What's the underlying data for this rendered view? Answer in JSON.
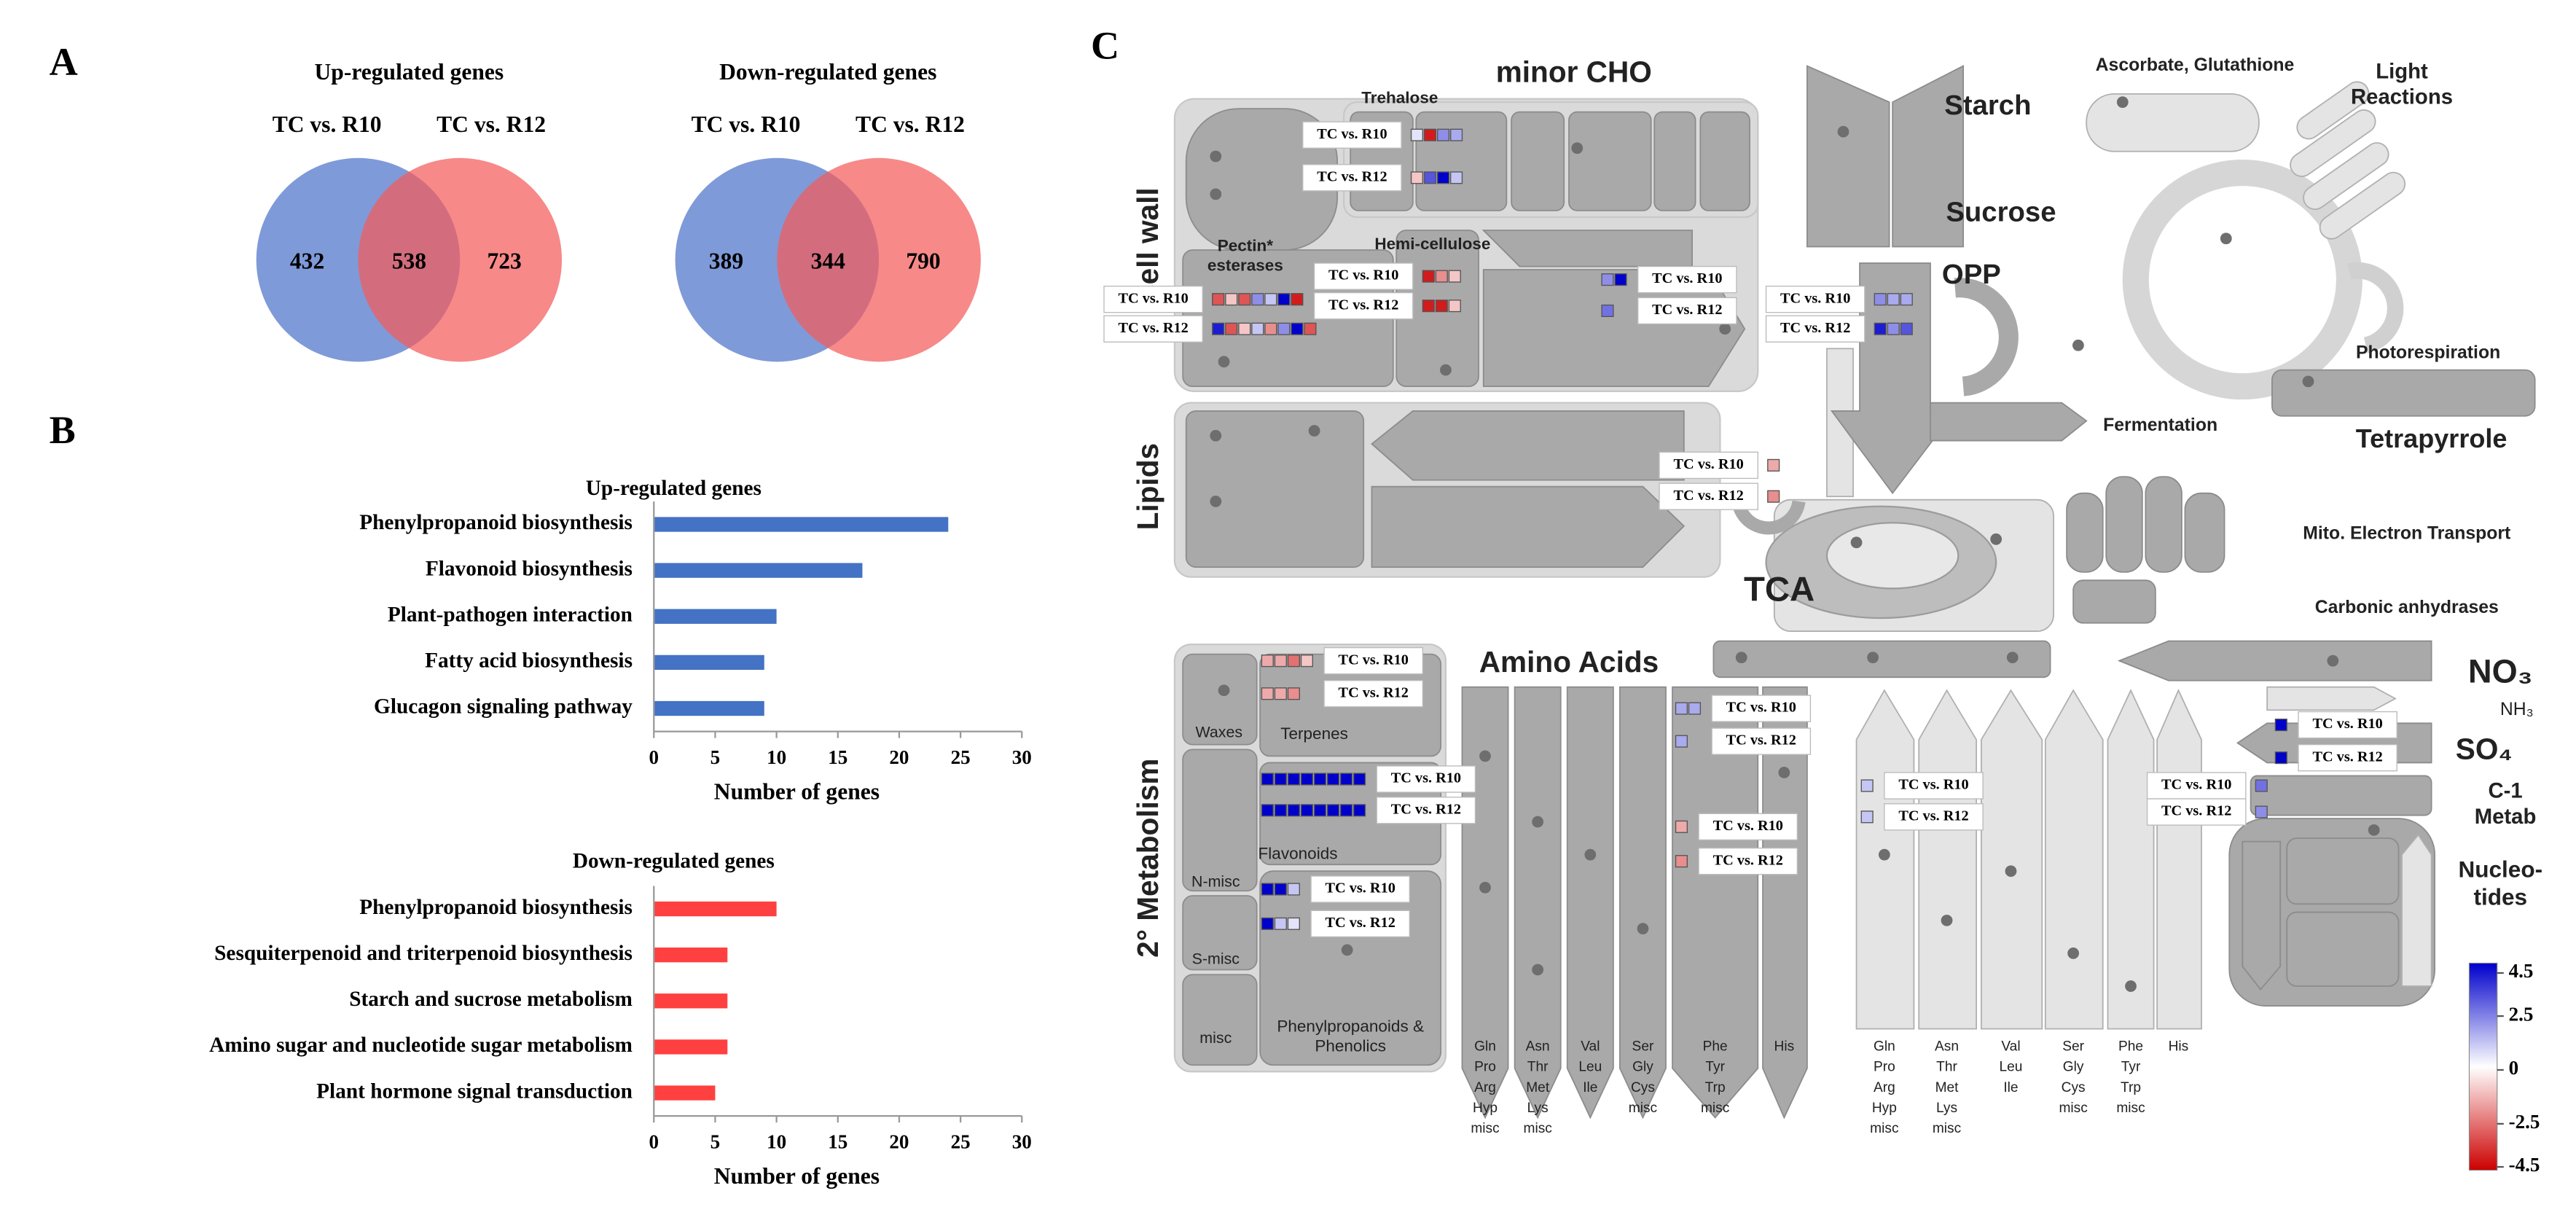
{
  "panel_labels": [
    "A",
    "B",
    "C"
  ],
  "chart_data": [
    {
      "type": "venn",
      "title": "Up-regulated genes",
      "series": [
        {
          "name": "TC vs. R10",
          "color": "#7f9ad8"
        },
        {
          "name": "TC vs. R12",
          "color": "#f45c5c"
        }
      ],
      "values": [
        432,
        538,
        723
      ]
    },
    {
      "type": "venn",
      "title": "Down-regulated genes",
      "series": [
        {
          "name": "TC vs. R10",
          "color": "#7f9ad8"
        },
        {
          "name": "TC vs. R12",
          "color": "#f45c5c"
        }
      ],
      "values": [
        389,
        344,
        790
      ]
    },
    {
      "type": "barh",
      "title": "Up-regulated genes",
      "categories": [
        "Phenylpropanoid biosynthesis",
        "Flavonoid biosynthesis",
        "Plant-pathogen interaction",
        "Fatty acid biosynthesis",
        "Glucagon signaling pathway"
      ],
      "values": [
        24,
        17,
        10,
        9,
        9
      ],
      "color": "#4472c4",
      "xlim": [
        0,
        30
      ],
      "xticks": [
        0,
        5,
        10,
        15,
        20,
        25,
        30
      ],
      "xlabel": "Number of genes"
    },
    {
      "type": "barh",
      "title": "Down-regulated genes",
      "categories": [
        "Phenylpropanoid biosynthesis",
        "Sesquiterpenoid and triterpenoid biosynthesis",
        "Starch and sucrose metabolism",
        "Amino sugar and nucleotide sugar metabolism",
        "Plant hormone signal transduction"
      ],
      "values": [
        10,
        6,
        6,
        6,
        5
      ],
      "color": "#ff4040",
      "xlim": [
        0,
        30
      ],
      "xticks": [
        0,
        5,
        10,
        15,
        20,
        25,
        30
      ],
      "xlabel": "Number of genes"
    }
  ],
  "diagram": {
    "labels": [
      "minor CHO",
      "Trehalose",
      "Cell wall",
      [
        "Pectin*",
        "esterases"
      ],
      "Hemi-cellulose",
      "Starch",
      "Sucrose",
      "OPP",
      "Ascorbate, Glutathione",
      [
        "Light",
        "Reactions"
      ],
      "Photorespiration",
      "Tetrapyrrole",
      "Fermentation",
      "Lipids",
      "TCA",
      "Mito. Electron Transport",
      "Carbonic anhydrases",
      "Amino Acids",
      "NO₃",
      "NH₃",
      "SO₄",
      [
        "C-1",
        "Metab"
      ],
      [
        "Nucleo-",
        "tides"
      ],
      "2° Metabolism",
      "Waxes",
      "Terpenes",
      "Flavonoids",
      "N-misc",
      "S-misc",
      "misc",
      [
        "Phenylpropanoids &",
        "Phenolics"
      ]
    ],
    "amino_acid_labels": [
      [
        "Gln",
        "Pro",
        "Arg",
        "Hyp",
        "misc"
      ],
      [
        "Asn",
        "Thr",
        "Met",
        "Lys",
        "misc"
      ],
      [
        "Val",
        "Leu",
        "Ile"
      ],
      [
        "Ser",
        "Gly",
        "Cys",
        "misc"
      ],
      [
        "Phe",
        "Tyr",
        "Trp",
        "misc"
      ],
      [
        "His"
      ],
      [
        "Gln",
        "Pro",
        "Arg",
        "Hyp",
        "misc"
      ],
      [
        "Asn",
        "Thr",
        "Met",
        "Lys",
        "misc"
      ],
      [
        "Val",
        "Leu",
        "Ile"
      ],
      [
        "Ser",
        "Gly",
        "Cys",
        "misc"
      ],
      [
        "Phe",
        "Tyr",
        "Trp",
        "misc"
      ],
      [
        "His"
      ]
    ],
    "heatmaps": [
      {
        "rows": [
          {
            "name": "TC vs. R10",
            "values": [
              0.5,
              -4,
              2,
              1.5
            ]
          },
          {
            "name": "TC vs. R12",
            "values": [
              -1,
              3,
              4.5,
              1
            ]
          }
        ]
      },
      {
        "rows": [
          {
            "name": "TC vs. R10",
            "values": [
              -3,
              -1,
              -3,
              2,
              1,
              4.5,
              -4
            ]
          },
          {
            "name": "TC vs. R12",
            "values": [
              4,
              -3,
              -1,
              1,
              -2,
              2,
              4.5,
              -3
            ]
          }
        ]
      },
      {
        "rows": [
          {
            "name": "TC vs. R10",
            "values": [
              -4,
              -2,
              -1
            ]
          },
          {
            "name": "TC vs. R12",
            "values": [
              -4,
              -4,
              -1
            ]
          }
        ]
      },
      {
        "rows": [
          {
            "name": "TC vs. R10",
            "values": [
              2,
              4.5
            ]
          },
          {
            "name": "TC vs. R12",
            "values": [
              2.5
            ]
          }
        ]
      },
      {
        "rows": [
          {
            "name": "TC vs. R10",
            "values": [
              2,
              1.5,
              1.5
            ]
          },
          {
            "name": "TC vs. R12",
            "values": [
              4,
              2,
              3
            ]
          }
        ]
      },
      {
        "rows": [
          {
            "name": "TC vs. R10",
            "values": [
              -1.5
            ]
          },
          {
            "name": "TC vs. R12",
            "values": [
              -2
            ]
          }
        ]
      },
      {
        "rows": [
          {
            "name": "TC vs. R10",
            "values": [
              -1.5,
              -1.5,
              -2.5,
              -1
            ]
          },
          {
            "name": "TC vs. R12",
            "values": [
              -1.5,
              -1.5,
              -2
            ]
          }
        ]
      },
      {
        "rows": [
          {
            "name": "TC vs. R10",
            "values": [
              4.5,
              4.5,
              4.5,
              4.5,
              4.5,
              4.5,
              4.5,
              4.5
            ]
          },
          {
            "name": "TC vs. R12",
            "values": [
              4.5,
              4.5,
              4.5,
              4.5,
              4.5,
              4.5,
              4.5,
              4.5
            ]
          }
        ]
      },
      {
        "rows": [
          {
            "name": "TC vs. R10",
            "values": [
              4.5,
              4.5,
              1
            ]
          },
          {
            "name": "TC vs. R12",
            "values": [
              4.5,
              1,
              0.5
            ]
          }
        ]
      },
      {
        "rows": [
          {
            "name": "TC vs. R10",
            "values": [
              1.5,
              1.5
            ]
          },
          {
            "name": "TC vs. R12",
            "values": [
              1.5
            ]
          }
        ]
      },
      {
        "rows": [
          {
            "name": "TC vs. R10",
            "values": [
              -1.5
            ]
          },
          {
            "name": "TC vs. R12",
            "values": [
              -2
            ]
          }
        ]
      },
      {
        "rows": [
          {
            "name": "TC vs. R10",
            "values": [
              1
            ]
          },
          {
            "name": "TC vs. R12",
            "values": [
              1
            ]
          }
        ]
      },
      {
        "rows": [
          {
            "name": "TC vs. R10",
            "values": [
              4.5
            ]
          },
          {
            "name": "TC vs. R12",
            "values": [
              4.5
            ]
          }
        ]
      },
      {
        "rows": [
          {
            "name": "TC vs. R10",
            "values": [
              2.5
            ]
          },
          {
            "name": "TC vs. R12",
            "values": [
              2
            ]
          }
        ]
      }
    ],
    "colorbar": {
      "lim": [
        -4.5,
        4.5
      ],
      "ticks": [
        4.5,
        2.5,
        0,
        -2.5,
        -4.5
      ]
    }
  }
}
